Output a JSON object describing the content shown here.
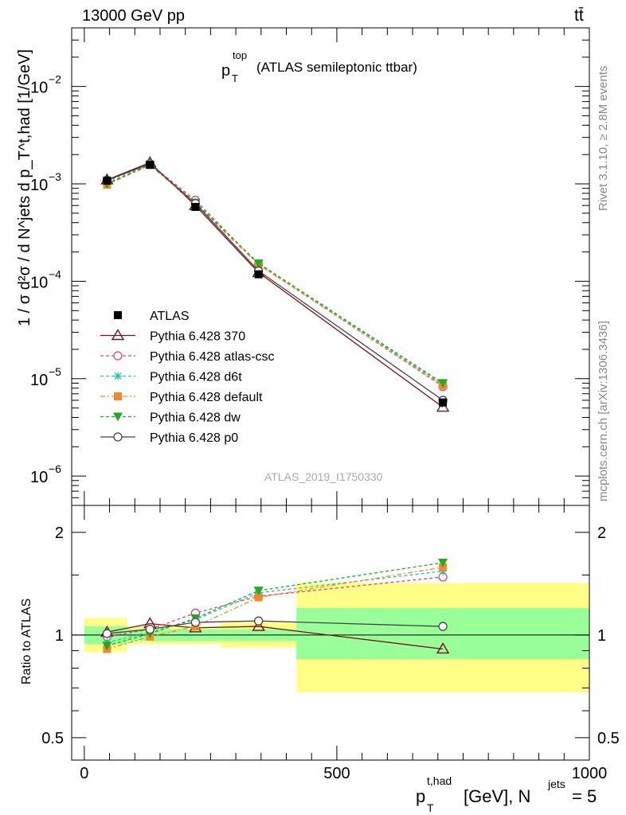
{
  "header": {
    "energy_label": "13000 GeV pp",
    "process_label": "tt̄"
  },
  "side": {
    "rivet_label": "Rivet 3.1.10, ≥ 2.8M events",
    "source_label": "mcplots.cern.ch [arXiv:1306.3436]"
  },
  "main_plot": {
    "title_p": "p",
    "title_sub": "T",
    "title_sup": "top",
    "title_rest": "(ATLAS semileptonic ttbar)",
    "ylabel": "1 / σ d²σ / d N^jets d p_T^t,had [1/GeV]",
    "analysis_label": "ATLAS_2019_I1750330"
  },
  "ratio_plot": {
    "ylabel": "Ratio to ATLAS"
  },
  "xaxis": {
    "label_p": "p",
    "label_sup": "t,had",
    "label_sub": "T",
    "label_rest": "[GeV], N",
    "label_sup2": "jets",
    "label_end": "= 5"
  },
  "chart_data": [
    {
      "type": "line",
      "panel": "main",
      "yscale": "log",
      "xlim": [
        -25,
        1000
      ],
      "ylim": [
        5e-07,
        0.04
      ],
      "x": [
        45,
        130,
        220,
        345,
        710
      ],
      "y_ticks": [
        {
          "value": 1e-06,
          "mant": "10",
          "exp": "−6"
        },
        {
          "value": 1e-05,
          "mant": "10",
          "exp": "−5"
        },
        {
          "value": 0.0001,
          "mant": "10",
          "exp": "−4"
        },
        {
          "value": 0.001,
          "mant": "10",
          "exp": "−3"
        },
        {
          "value": 0.01,
          "mant": "10",
          "exp": "−2"
        }
      ],
      "series": [
        {
          "name": "ATLAS",
          "color": "#000000",
          "marker": "square",
          "dash": "none",
          "values": [
            0.00108,
            0.00157,
            0.00058,
            0.000118,
            5.7e-06
          ],
          "err": [
            6e-05,
            8e-05,
            3e-05,
            6e-06,
            3e-07
          ]
        },
        {
          "name": "Pythia 6.428 370",
          "color": "#7a0f1e",
          "marker": "triangle-open",
          "dash": "none",
          "values": [
            0.0011,
            0.00165,
            0.0006,
            0.000123,
            5.1e-06
          ]
        },
        {
          "name": "Pythia 6.428 atlas-csc",
          "color": "#e8417a",
          "marker": "circle-open",
          "dash": "4,3",
          "values": [
            0.00107,
            0.0016,
            0.00068,
            0.00015,
            8.3e-06
          ]
        },
        {
          "name": "Pythia 6.428 d6t",
          "color": "#24c7a0",
          "marker": "star",
          "dash": "4,3",
          "values": [
            0.00102,
            0.00158,
            0.00065,
            0.000152,
            8.7e-06
          ]
        },
        {
          "name": "Pythia 6.428 default",
          "color": "#f08a2c",
          "marker": "square",
          "dash": "6,3,2,3",
          "values": [
            0.00098,
            0.00156,
            0.00062,
            0.000148,
            8.5e-06
          ]
        },
        {
          "name": "Pythia 6.428 dw",
          "color": "#22aa22",
          "marker": "triangle-down",
          "dash": "4,3",
          "values": [
            0.001,
            0.00157,
            0.00064,
            0.000153,
            9e-06
          ]
        },
        {
          "name": "Pythia 6.428 p0",
          "color": "#444444",
          "marker": "circle-open",
          "dash": "none",
          "values": [
            0.00109,
            0.00161,
            0.00063,
            0.000128,
            6e-06
          ]
        }
      ]
    },
    {
      "type": "line",
      "panel": "ratio",
      "ylabel": "Ratio to ATLAS",
      "xlim": [
        -25,
        1000
      ],
      "ylim": [
        0.43,
        2.4
      ],
      "x": [
        45,
        130,
        220,
        345,
        710
      ],
      "x_ticks": [
        0,
        500,
        1000
      ],
      "y_ticks": [
        0.5,
        1,
        2
      ],
      "uncertainty_bands": [
        {
          "x0": 0,
          "x1": 85,
          "inner": [
            0.94,
            1.06
          ],
          "outer": [
            0.89,
            1.12
          ]
        },
        {
          "x0": 85,
          "x1": 175,
          "inner": [
            0.96,
            1.04
          ],
          "outer": [
            0.94,
            1.06
          ]
        },
        {
          "x0": 175,
          "x1": 270,
          "inner": [
            0.96,
            1.04
          ],
          "outer": [
            0.94,
            1.06
          ]
        },
        {
          "x0": 270,
          "x1": 420,
          "inner": [
            0.96,
            1.04
          ],
          "outer": [
            0.92,
            1.09
          ]
        },
        {
          "x0": 420,
          "x1": 1000,
          "inner": [
            0.85,
            1.2
          ],
          "outer": [
            0.68,
            1.42
          ]
        }
      ],
      "series": [
        {
          "name": "Pythia 6.428 370",
          "color": "#7a0f1e",
          "marker": "triangle-open",
          "dash": "none",
          "values": [
            1.02,
            1.08,
            1.05,
            1.06,
            0.91
          ]
        },
        {
          "name": "Pythia 6.428 atlas-csc",
          "color": "#e8417a",
          "marker": "circle-open",
          "dash": "4,3",
          "values": [
            0.99,
            1.04,
            1.16,
            1.3,
            1.48
          ]
        },
        {
          "name": "Pythia 6.428 d6t",
          "color": "#24c7a0",
          "marker": "star",
          "dash": "4,3",
          "values": [
            0.95,
            1.02,
            1.11,
            1.33,
            1.54
          ]
        },
        {
          "name": "Pythia 6.428 default",
          "color": "#f08a2c",
          "marker": "square",
          "dash": "6,3,2,3",
          "values": [
            0.91,
            0.99,
            1.06,
            1.29,
            1.58
          ]
        },
        {
          "name": "Pythia 6.428 dw",
          "color": "#22aa22",
          "marker": "triangle-down",
          "dash": "4,3",
          "values": [
            0.93,
            1.01,
            1.12,
            1.35,
            1.63
          ]
        },
        {
          "name": "Pythia 6.428 p0",
          "color": "#444444",
          "marker": "circle-open",
          "dash": "none",
          "values": [
            1.01,
            1.04,
            1.09,
            1.1,
            1.06
          ]
        }
      ]
    }
  ]
}
